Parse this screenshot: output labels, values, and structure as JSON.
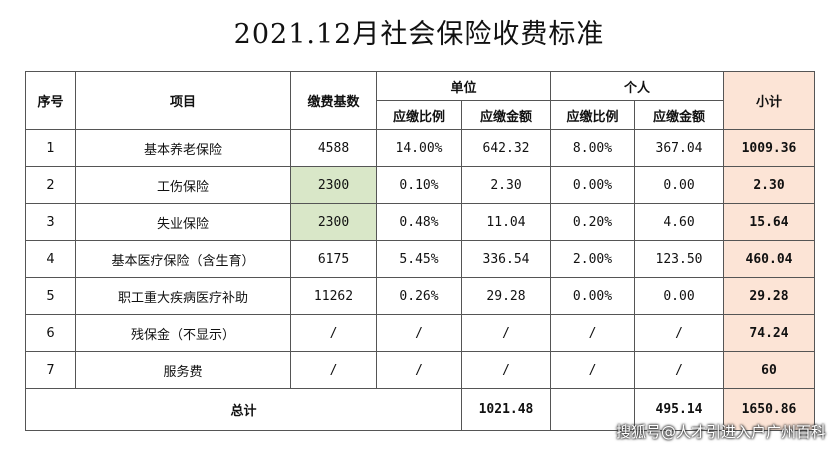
{
  "title": "2021.12月社会保险收费标准",
  "header": {
    "seq": "序号",
    "item": "项目",
    "base": "缴费基数",
    "unit_group": "单位",
    "person_group": "个人",
    "subtotal": "小计",
    "unit_rate": "应缴比例",
    "unit_amount": "应缴金额",
    "person_rate": "应缴比例",
    "person_amount": "应缴金额"
  },
  "rows": [
    {
      "seq": "1",
      "item": "基本养老保险",
      "base": "4588",
      "unit_rate": "14.00%",
      "unit_amount": "642.32",
      "person_rate": "8.00%",
      "person_amount": "367.04",
      "subtotal": "1009.36",
      "base_highlight": false
    },
    {
      "seq": "2",
      "item": "工伤保险",
      "base": "2300",
      "unit_rate": "0.10%",
      "unit_amount": "2.30",
      "person_rate": "0.00%",
      "person_amount": "0.00",
      "subtotal": "2.30",
      "base_highlight": true
    },
    {
      "seq": "3",
      "item": "失业保险",
      "base": "2300",
      "unit_rate": "0.48%",
      "unit_amount": "11.04",
      "person_rate": "0.20%",
      "person_amount": "4.60",
      "subtotal": "15.64",
      "base_highlight": true
    },
    {
      "seq": "4",
      "item": "基本医疗保险（含生育）",
      "base": "6175",
      "unit_rate": "5.45%",
      "unit_amount": "336.54",
      "person_rate": "2.00%",
      "person_amount": "123.50",
      "subtotal": "460.04",
      "base_highlight": false
    },
    {
      "seq": "5",
      "item": "职工重大疾病医疗补助",
      "base": "11262",
      "unit_rate": "0.26%",
      "unit_amount": "29.28",
      "person_rate": "0.00%",
      "person_amount": "0.00",
      "subtotal": "29.28",
      "base_highlight": false
    },
    {
      "seq": "6",
      "item": "残保金（不显示）",
      "base": "/",
      "unit_rate": "/",
      "unit_amount": "/",
      "person_rate": "/",
      "person_amount": "/",
      "subtotal": "74.24",
      "base_highlight": false
    },
    {
      "seq": "7",
      "item": "服务费",
      "base": "/",
      "unit_rate": "/",
      "unit_amount": "/",
      "person_rate": "/",
      "person_amount": "/",
      "subtotal": "60",
      "base_highlight": false
    }
  ],
  "total": {
    "label": "总计",
    "unit_amount": "1021.48",
    "person_amount": "495.14",
    "subtotal": "1650.86"
  },
  "colors": {
    "subtotal_bg": "#fce4d6",
    "base_highlight_bg": "#d9e7c8"
  },
  "watermark": "搜狐号@人才引进入户广州百科"
}
